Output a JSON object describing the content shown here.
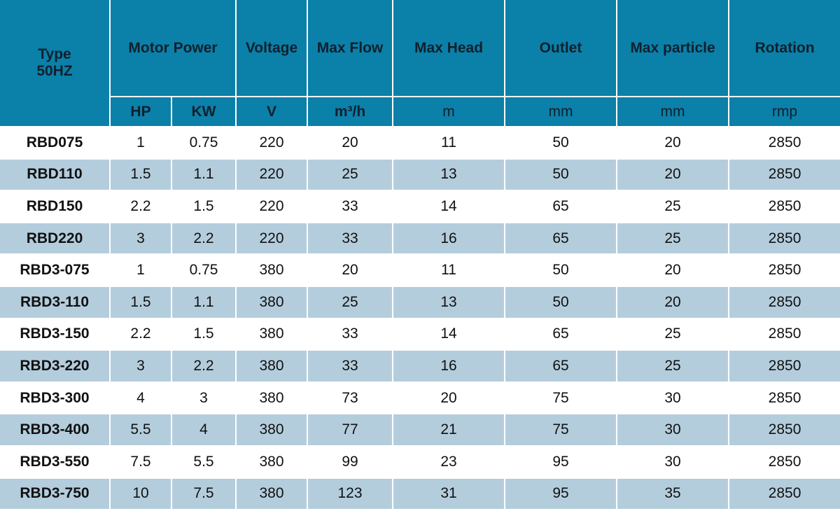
{
  "header": {
    "type": [
      "Type",
      "50HZ"
    ],
    "columns": [
      "Motor Power",
      "Voltage",
      "Max Flow",
      "Max Head",
      "Outlet",
      "Max particle",
      "Rotation"
    ],
    "units": [
      "HP",
      "KW",
      "V",
      "m³/h",
      "m",
      "mm",
      "mm",
      "rmp"
    ]
  },
  "table": {
    "rows": [
      [
        "RBD075",
        1,
        0.75,
        220,
        20,
        11,
        50,
        20,
        2850
      ],
      [
        "RBD110",
        1.5,
        1.1,
        220,
        25,
        13,
        50,
        20,
        2850
      ],
      [
        "RBD150",
        2.2,
        1.5,
        220,
        33,
        14,
        65,
        25,
        2850
      ],
      [
        "RBD220",
        3,
        2.2,
        220,
        33,
        16,
        65,
        25,
        2850
      ],
      [
        "RBD3-075",
        1,
        0.75,
        380,
        20,
        11,
        50,
        20,
        2850
      ],
      [
        "RBD3-110",
        1.5,
        1.1,
        380,
        25,
        13,
        50,
        20,
        2850
      ],
      [
        "RBD3-150",
        2.2,
        1.5,
        380,
        33,
        14,
        65,
        25,
        2850
      ],
      [
        "RBD3-220",
        3,
        2.2,
        380,
        33,
        16,
        65,
        25,
        2850
      ],
      [
        "RBD3-300",
        4,
        3,
        380,
        73,
        20,
        75,
        30,
        2850
      ],
      [
        "RBD3-400",
        5.5,
        4,
        380,
        77,
        21,
        75,
        30,
        2850
      ],
      [
        "RBD3-550",
        7.5,
        5.5,
        380,
        99,
        23,
        95,
        30,
        2850
      ],
      [
        "RBD3-750",
        10,
        7.5,
        380,
        123,
        31,
        95,
        35,
        2850
      ]
    ]
  }
}
